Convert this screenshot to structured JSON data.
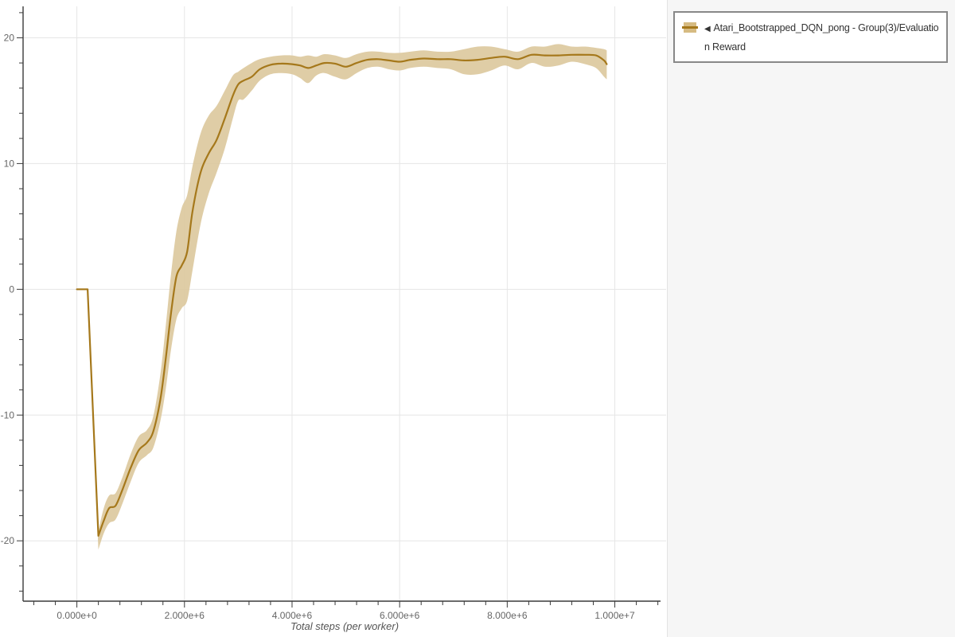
{
  "colors": {
    "line": "#a5781b",
    "band": "#dcc89c",
    "swatch_band": "#d6bb82",
    "axis": "#3a3a3a",
    "grid": "#e6e6e6",
    "tick_label": "#666666",
    "panel_background": "#f6f6f6",
    "legend_border": "#888888"
  },
  "legend": {
    "toggle_icon": "◀",
    "label_line1": "Atari_Bootstrapped_DQN_pong - Group(3)/Evaluatio",
    "label_line2": "n Reward",
    "series_full_name": "Atari_Bootstrapped_DQN_pong - Group(3)/Evaluation Reward"
  },
  "chart_data": {
    "type": "line",
    "title": "",
    "xlabel": "Total steps (per worker)",
    "ylabel": "",
    "grid": true,
    "legend_position": "top-right",
    "xlim": [
      -1000000,
      10850000
    ],
    "ylim": [
      -24.8,
      22.5
    ],
    "x_ticks": [
      {
        "value": 0,
        "label": "0.000e+0"
      },
      {
        "value": 2000000,
        "label": "2.000e+6"
      },
      {
        "value": 4000000,
        "label": "4.000e+6"
      },
      {
        "value": 6000000,
        "label": "6.000e+6"
      },
      {
        "value": 8000000,
        "label": "8.000e+6"
      },
      {
        "value": 10000000,
        "label": "1.000e+7"
      }
    ],
    "x_minor_step": 400000,
    "y_ticks": [
      {
        "value": 20,
        "label": "20"
      },
      {
        "value": 10,
        "label": "10"
      },
      {
        "value": 0,
        "label": "0"
      },
      {
        "value": -10,
        "label": "-10"
      },
      {
        "value": -20,
        "label": "-20"
      }
    ],
    "y_minor_step": 2,
    "series": [
      {
        "name": "Atari_Bootstrapped_DQN_pong - Group(3)/Evaluation Reward",
        "x": [
          0,
          200000,
          400000,
          500000,
          600000,
          720000,
          850000,
          1000000,
          1150000,
          1300000,
          1420000,
          1550000,
          1650000,
          1750000,
          1850000,
          1950000,
          2050000,
          2150000,
          2300000,
          2450000,
          2600000,
          2750000,
          2900000,
          3000000,
          3100000,
          3250000,
          3400000,
          3600000,
          3800000,
          4000000,
          4150000,
          4300000,
          4450000,
          4600000,
          4800000,
          5000000,
          5200000,
          5400000,
          5600000,
          5800000,
          6000000,
          6200000,
          6450000,
          6700000,
          6950000,
          7200000,
          7450000,
          7700000,
          7950000,
          8200000,
          8450000,
          8700000,
          8950000,
          9200000,
          9450000,
          9650000,
          9800000,
          9850000
        ],
        "mean": [
          0,
          0,
          -19.6,
          -18.4,
          -17.4,
          -17.2,
          -15.9,
          -14.2,
          -12.8,
          -12.2,
          -11.3,
          -8.8,
          -5.6,
          -1.9,
          1.0,
          1.9,
          3.0,
          6.2,
          9.3,
          10.8,
          11.9,
          13.6,
          15.4,
          16.3,
          16.6,
          16.9,
          17.5,
          17.85,
          17.95,
          17.9,
          17.8,
          17.6,
          17.8,
          18.0,
          17.95,
          17.7,
          18.0,
          18.25,
          18.3,
          18.2,
          18.1,
          18.25,
          18.35,
          18.3,
          18.3,
          18.2,
          18.25,
          18.4,
          18.5,
          18.3,
          18.65,
          18.6,
          18.6,
          18.65,
          18.65,
          18.6,
          18.2,
          17.9
        ],
        "lo": [
          0,
          0,
          -20.7,
          -19.4,
          -18.6,
          -18.3,
          -17.0,
          -15.3,
          -13.8,
          -13.2,
          -12.6,
          -10.5,
          -8.0,
          -4.8,
          -2.4,
          -1.5,
          -0.9,
          1.5,
          5.2,
          7.6,
          9.3,
          11.2,
          13.6,
          15.0,
          15.1,
          15.8,
          16.6,
          17.1,
          17.2,
          17.1,
          16.8,
          16.4,
          17.0,
          17.2,
          16.9,
          16.7,
          17.2,
          17.6,
          17.7,
          17.5,
          17.4,
          17.6,
          17.7,
          17.6,
          17.5,
          17.1,
          17.1,
          17.4,
          17.8,
          17.5,
          18.0,
          17.7,
          17.8,
          18.1,
          17.9,
          17.6,
          16.9,
          16.7
        ],
        "hi": [
          0,
          0,
          -19.2,
          -17.4,
          -16.4,
          -16.2,
          -14.9,
          -13.1,
          -11.7,
          -11.2,
          -10.1,
          -6.8,
          -3.0,
          1.2,
          4.6,
          6.5,
          7.5,
          9.8,
          12.4,
          13.8,
          14.6,
          15.8,
          17.0,
          17.3,
          17.6,
          18.0,
          18.3,
          18.5,
          18.6,
          18.6,
          18.5,
          18.6,
          18.5,
          18.7,
          18.6,
          18.4,
          18.7,
          18.9,
          18.9,
          18.8,
          18.8,
          18.9,
          19.0,
          18.9,
          18.9,
          19.1,
          19.3,
          19.3,
          19.1,
          18.9,
          19.3,
          19.3,
          19.5,
          19.3,
          19.3,
          19.2,
          19.1,
          19.0
        ]
      }
    ]
  }
}
